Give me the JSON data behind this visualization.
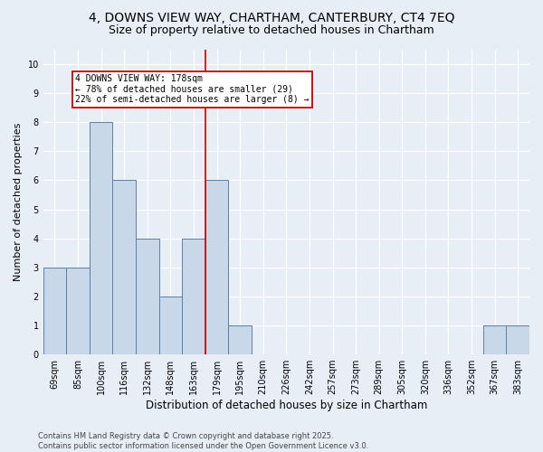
{
  "title_line1": "4, DOWNS VIEW WAY, CHARTHAM, CANTERBURY, CT4 7EQ",
  "title_line2": "Size of property relative to detached houses in Chartham",
  "xlabel": "Distribution of detached houses by size in Chartham",
  "ylabel": "Number of detached properties",
  "footnote": "Contains HM Land Registry data © Crown copyright and database right 2025.\nContains public sector information licensed under the Open Government Licence v3.0.",
  "bin_labels": [
    "69sqm",
    "85sqm",
    "100sqm",
    "116sqm",
    "132sqm",
    "148sqm",
    "163sqm",
    "179sqm",
    "195sqm",
    "210sqm",
    "226sqm",
    "242sqm",
    "257sqm",
    "273sqm",
    "289sqm",
    "305sqm",
    "320sqm",
    "336sqm",
    "352sqm",
    "367sqm",
    "383sqm"
  ],
  "bar_heights": [
    3,
    3,
    8,
    6,
    4,
    2,
    4,
    6,
    1,
    0,
    0,
    0,
    0,
    0,
    0,
    0,
    0,
    0,
    0,
    1,
    1
  ],
  "bar_color": "#c8d8e8",
  "bar_edge_color": "#5b7fa6",
  "vline_color": "#cc0000",
  "annotation_title": "4 DOWNS VIEW WAY: 178sqm",
  "annotation_line2": "← 78% of detached houses are smaller (29)",
  "annotation_line3": "22% of semi-detached houses are larger (8) →",
  "annotation_box_color": "#cc0000",
  "ylim": [
    0,
    10.5
  ],
  "yticks": [
    0,
    1,
    2,
    3,
    4,
    5,
    6,
    7,
    8,
    9,
    10
  ],
  "bg_color": "#e8eef5",
  "plot_bg_color": "#e8eef5",
  "grid_color": "#ffffff",
  "title_fontsize": 10,
  "subtitle_fontsize": 9,
  "ylabel_fontsize": 8,
  "xlabel_fontsize": 8.5,
  "tick_fontsize": 7,
  "annot_fontsize": 7,
  "footnote_fontsize": 6
}
